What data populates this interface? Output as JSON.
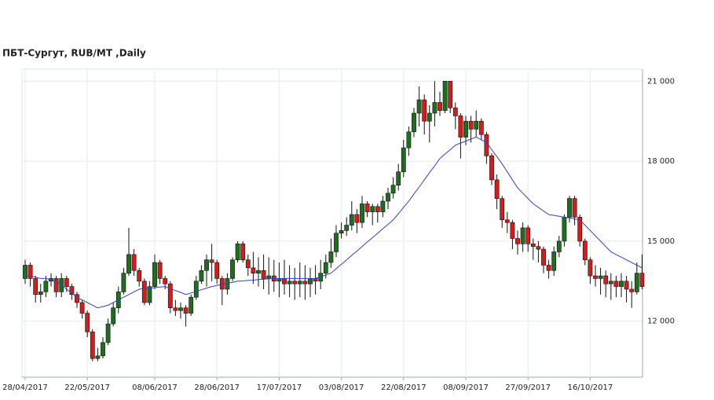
{
  "chart_data": {
    "type": "candlestick",
    "title": "ПБТ-Сургут,  RUB/MT ,Daily",
    "categories": [
      "28/04/2017",
      null,
      null,
      null,
      null,
      null,
      null,
      null,
      null,
      null,
      null,
      null,
      "22/05/2017",
      null,
      null,
      null,
      null,
      null,
      null,
      null,
      null,
      null,
      null,
      null,
      null,
      "08/06/2017",
      null,
      null,
      null,
      null,
      null,
      null,
      null,
      null,
      null,
      null,
      null,
      "28/06/2017",
      null,
      null,
      null,
      null,
      null,
      null,
      null,
      null,
      null,
      null,
      null,
      "17/07/2017",
      null,
      null,
      null,
      null,
      null,
      null,
      null,
      null,
      null,
      null,
      null,
      "03/08/2017",
      null,
      null,
      null,
      null,
      null,
      null,
      null,
      null,
      null,
      null,
      null,
      "22/08/2017",
      null,
      null,
      null,
      null,
      null,
      null,
      null,
      null,
      null,
      null,
      null,
      "08/09/2017",
      null,
      null,
      null,
      null,
      null,
      null,
      null,
      null,
      null,
      null,
      null,
      "27/09/2017",
      null,
      null,
      null,
      null,
      null,
      null,
      null,
      null,
      null,
      null,
      null,
      "16/10/2017",
      null,
      null,
      null,
      null,
      null,
      null,
      null,
      null,
      null,
      null
    ],
    "ohlc": [
      [
        13600,
        14300,
        13400,
        14100
      ],
      [
        14100,
        14200,
        13300,
        13600
      ],
      [
        13600,
        13700,
        12700,
        13000
      ],
      [
        13000,
        13400,
        12700,
        13100
      ],
      [
        13100,
        13700,
        12900,
        13500
      ],
      [
        13500,
        13800,
        13300,
        13600
      ],
      [
        13600,
        13700,
        12900,
        13100
      ],
      [
        13100,
        13800,
        12900,
        13600
      ],
      [
        13600,
        13700,
        13100,
        13300
      ],
      [
        13300,
        13400,
        12800,
        13000
      ],
      [
        13000,
        13100,
        12500,
        12700
      ],
      [
        12700,
        12800,
        12100,
        12300
      ],
      [
        12300,
        12400,
        11400,
        11600
      ],
      [
        11600,
        11700,
        10500,
        10600
      ],
      [
        10600,
        11000,
        10500,
        10700
      ],
      [
        10700,
        11400,
        10600,
        11200
      ],
      [
        11200,
        12100,
        11100,
        11900
      ],
      [
        11900,
        12700,
        11800,
        12500
      ],
      [
        12500,
        13300,
        12300,
        13100
      ],
      [
        13100,
        14000,
        13000,
        13800
      ],
      [
        13800,
        15500,
        13700,
        14500
      ],
      [
        14500,
        14700,
        13700,
        13900
      ],
      [
        13900,
        14000,
        13300,
        13500
      ],
      [
        13500,
        13600,
        12600,
        12700
      ],
      [
        12700,
        13500,
        12600,
        13300
      ],
      [
        13300,
        14500,
        13200,
        14200
      ],
      [
        14200,
        14300,
        13400,
        13600
      ],
      [
        13600,
        13700,
        13200,
        13400
      ],
      [
        13400,
        13500,
        12300,
        12500
      ],
      [
        12500,
        12800,
        12200,
        12400
      ],
      [
        12400,
        12700,
        12100,
        12500
      ],
      [
        12500,
        12600,
        11800,
        12300
      ],
      [
        12300,
        13000,
        12200,
        12900
      ],
      [
        12900,
        13700,
        12800,
        13500
      ],
      [
        13500,
        14100,
        13400,
        13900
      ],
      [
        13900,
        14500,
        13300,
        14300
      ],
      [
        14300,
        14900,
        13500,
        14200
      ],
      [
        14200,
        14300,
        13400,
        13600
      ],
      [
        13600,
        13700,
        12600,
        13200
      ],
      [
        13200,
        13800,
        13000,
        13600
      ],
      [
        13600,
        14400,
        13500,
        14300
      ],
      [
        14300,
        15000,
        14200,
        14900
      ],
      [
        14900,
        15000,
        14200,
        14300
      ],
      [
        14300,
        14500,
        13700,
        14000
      ],
      [
        14000,
        14600,
        13400,
        13800
      ],
      [
        13800,
        14400,
        13300,
        13900
      ],
      [
        13900,
        14500,
        13200,
        13600
      ],
      [
        13600,
        14400,
        13000,
        13700
      ],
      [
        13700,
        14300,
        13100,
        13500
      ],
      [
        13500,
        14200,
        12900,
        13600
      ],
      [
        13600,
        14300,
        13000,
        13400
      ],
      [
        13400,
        14100,
        12900,
        13500
      ],
      [
        13500,
        14000,
        12800,
        13400
      ],
      [
        13400,
        14200,
        12900,
        13500
      ],
      [
        13500,
        14100,
        12800,
        13400
      ],
      [
        13400,
        14000,
        12900,
        13600
      ],
      [
        13600,
        14100,
        13000,
        13500
      ],
      [
        13500,
        14300,
        13200,
        13800
      ],
      [
        13800,
        14500,
        13600,
        14200
      ],
      [
        14200,
        15100,
        14000,
        14600
      ],
      [
        14600,
        15600,
        14400,
        15300
      ],
      [
        15300,
        15700,
        15100,
        15400
      ],
      [
        15400,
        15900,
        15200,
        15600
      ],
      [
        15600,
        16500,
        15400,
        16000
      ],
      [
        16000,
        16200,
        15300,
        15700
      ],
      [
        15700,
        16700,
        15500,
        16400
      ],
      [
        16400,
        16500,
        15900,
        16100
      ],
      [
        16100,
        16400,
        15600,
        16300
      ],
      [
        16300,
        16400,
        15700,
        16100
      ],
      [
        16100,
        16700,
        15900,
        16500
      ],
      [
        16500,
        17000,
        16200,
        16800
      ],
      [
        16800,
        17400,
        16600,
        17100
      ],
      [
        17100,
        17900,
        16900,
        17600
      ],
      [
        17600,
        18800,
        17400,
        18500
      ],
      [
        18500,
        19300,
        18200,
        19100
      ],
      [
        19100,
        20000,
        18900,
        19800
      ],
      [
        19800,
        20800,
        19300,
        20300
      ],
      [
        20300,
        20500,
        19000,
        19500
      ],
      [
        19500,
        20100,
        18700,
        19800
      ],
      [
        19800,
        21000,
        19300,
        20200
      ],
      [
        20200,
        20600,
        19700,
        19900
      ],
      [
        19900,
        21000,
        19800,
        21000
      ],
      [
        21000,
        21000,
        19800,
        20000
      ],
      [
        20000,
        20200,
        19200,
        19700
      ],
      [
        19700,
        19800,
        18100,
        18900
      ],
      [
        18900,
        19700,
        18600,
        19500
      ],
      [
        19500,
        19700,
        18700,
        19200
      ],
      [
        19200,
        19900,
        18900,
        19500
      ],
      [
        19500,
        19600,
        18800,
        19000
      ],
      [
        19000,
        19100,
        17900,
        18200
      ],
      [
        18200,
        18300,
        17100,
        17300
      ],
      [
        17300,
        17500,
        16200,
        16600
      ],
      [
        16600,
        16700,
        15500,
        15800
      ],
      [
        15800,
        16100,
        15300,
        15700
      ],
      [
        15700,
        15800,
        14700,
        15100
      ],
      [
        15100,
        15400,
        14500,
        14900
      ],
      [
        14900,
        15700,
        14600,
        15500
      ],
      [
        15500,
        15600,
        14600,
        14900
      ],
      [
        14900,
        15100,
        14300,
        14800
      ],
      [
        14800,
        15000,
        14200,
        14700
      ],
      [
        14700,
        14800,
        13800,
        14100
      ],
      [
        14100,
        14300,
        13600,
        13900
      ],
      [
        13900,
        14800,
        13700,
        14600
      ],
      [
        14600,
        15200,
        14400,
        15000
      ],
      [
        15000,
        16000,
        14800,
        15900
      ],
      [
        15900,
        16700,
        15700,
        16600
      ],
      [
        16600,
        16700,
        15600,
        15900
      ],
      [
        15900,
        16000,
        14800,
        15000
      ],
      [
        15000,
        15100,
        14100,
        14300
      ],
      [
        14300,
        14400,
        13400,
        13700
      ],
      [
        13700,
        14100,
        13300,
        13600
      ],
      [
        13600,
        14000,
        13000,
        13700
      ],
      [
        13700,
        13900,
        12900,
        13400
      ],
      [
        13400,
        13800,
        12800,
        13500
      ],
      [
        13500,
        13700,
        12900,
        13300
      ],
      [
        13300,
        13800,
        12900,
        13500
      ],
      [
        13500,
        13700,
        12700,
        13200
      ],
      [
        13200,
        13500,
        12500,
        13100
      ],
      [
        13100,
        14200,
        13000,
        13800
      ],
      [
        13800,
        14500,
        13200,
        13300
      ]
    ],
    "ma": [
      13700,
      13700,
      13650,
      13600,
      13600,
      13550,
      13500,
      13350,
      13200,
      13050,
      12900,
      12800,
      12700,
      12600,
      12500,
      12550,
      12600,
      12700,
      12800,
      12900,
      13000,
      13100,
      13200,
      13220,
      13240,
      13260,
      13280,
      13300,
      13220,
      13150,
      13080,
      13000,
      13060,
      13120,
      13180,
      13240,
      13300,
      13340,
      13380,
      13420,
      13460,
      13500,
      13510,
      13530,
      13540,
      13560,
      13570,
      13590,
      13600,
      13600,
      13600,
      13600,
      13600,
      13600,
      13600,
      13600,
      13600,
      13670,
      13730,
      13800,
      13970,
      14130,
      14300,
      14470,
      14630,
      14800,
      14970,
      15130,
      15300,
      15470,
      15630,
      15800,
      16030,
      16270,
      16500,
      16770,
      17030,
      17300,
      17570,
      17830,
      18100,
      18270,
      18430,
      18600,
      18680,
      18750,
      18830,
      18900,
      18800,
      18700,
      18430,
      18170,
      17900,
      17600,
      17300,
      17000,
      16800,
      16600,
      16400,
      16270,
      16130,
      16000,
      15970,
      15930,
      15900,
      15870,
      15830,
      15800,
      15600,
      15400,
      15200,
      15000,
      14800,
      14600,
      14500,
      14400,
      14300,
      14200,
      14100,
      14000
    ],
    "up_color": "#1f6e1f",
    "down_color": "#d41c1c",
    "ma_color": "#3440c8",
    "ylim": [
      9900,
      21450
    ],
    "yticks": [
      {
        "value": 12000,
        "label": "12 000"
      },
      {
        "value": 15000,
        "label": "15 000"
      },
      {
        "value": 18000,
        "label": "18 000"
      },
      {
        "value": 21000,
        "label": "21 000"
      }
    ],
    "grid": true
  }
}
